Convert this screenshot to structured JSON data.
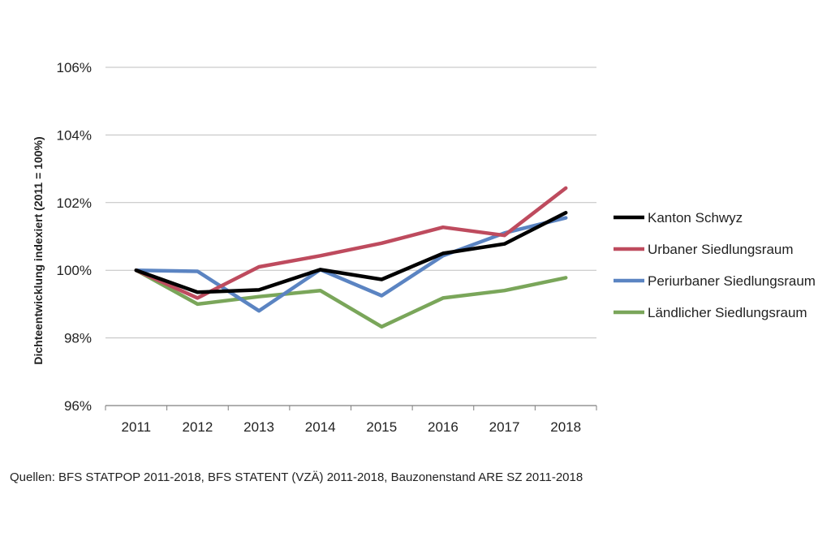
{
  "chart_data": {
    "type": "line",
    "title": "",
    "xlabel": "",
    "ylabel": "Dichteentwicklung indexiert (2011 = 100%)",
    "categories": [
      "2011",
      "2012",
      "2013",
      "2014",
      "2015",
      "2016",
      "2017",
      "2018"
    ],
    "ylim": [
      96,
      106
    ],
    "yticks": [
      96,
      98,
      100,
      102,
      104,
      106
    ],
    "ytick_labels": [
      "96%",
      "98%",
      "100%",
      "102%",
      "104%",
      "106%"
    ],
    "grid": true,
    "legend_position": "right",
    "series": [
      {
        "name": "Kanton Schwyz",
        "color": "#000000",
        "values": [
          100.0,
          99.35,
          99.42,
          100.02,
          99.73,
          100.5,
          100.78,
          101.7
        ]
      },
      {
        "name": "Urbaner Siedlungsraum",
        "color": "#be4b5e",
        "values": [
          100.0,
          99.18,
          100.1,
          100.43,
          100.8,
          101.27,
          101.03,
          102.43
        ]
      },
      {
        "name": "Periurbaner Siedlungsraum",
        "color": "#5b84c2",
        "values": [
          100.0,
          99.97,
          98.8,
          100.02,
          99.25,
          100.43,
          101.1,
          101.55
        ]
      },
      {
        "name": "Ländlicher Siedlungsraum",
        "color": "#7aa65a",
        "values": [
          100.0,
          99.0,
          99.22,
          99.4,
          98.33,
          99.18,
          99.4,
          99.78
        ]
      }
    ]
  },
  "source_note": "Quellen: BFS STATPOP 2011-2018, BFS STATENT (VZÄ) 2011-2018, Bauzonenstand ARE SZ 2011-2018"
}
